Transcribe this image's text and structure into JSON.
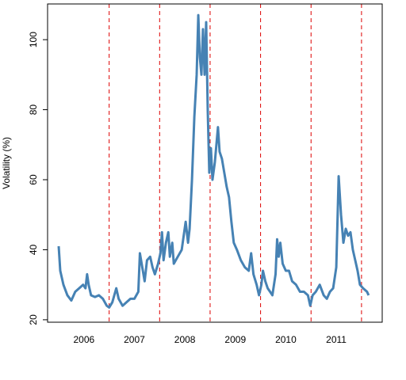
{
  "chart_data": {
    "type": "line",
    "ylabel": "Volatility (%)",
    "x": [
      2006.0,
      2006.031,
      2006.094,
      2006.172,
      2006.25,
      2006.328,
      2006.406,
      2006.484,
      2006.531,
      2006.563,
      2006.594,
      2006.641,
      2006.719,
      2006.797,
      2006.875,
      2006.953,
      2007.0,
      2007.063,
      2007.141,
      2007.188,
      2007.266,
      2007.344,
      2007.422,
      2007.5,
      2007.578,
      2007.609,
      2007.656,
      2007.703,
      2007.75,
      2007.813,
      2007.859,
      2007.906,
      2007.969,
      2008.016,
      2008.047,
      2008.078,
      2008.125,
      2008.172,
      2008.203,
      2008.25,
      2008.281,
      2008.359,
      2008.438,
      2008.516,
      2008.563,
      2008.594,
      2008.641,
      2008.688,
      2008.734,
      2008.766,
      2008.797,
      2008.828,
      2008.859,
      2008.891,
      2008.922,
      2008.953,
      2008.984,
      2009.016,
      2009.047,
      2009.094,
      2009.125,
      2009.156,
      2009.188,
      2009.234,
      2009.281,
      2009.328,
      2009.375,
      2009.422,
      2009.469,
      2009.531,
      2009.609,
      2009.688,
      2009.766,
      2009.813,
      2009.859,
      2009.922,
      2009.969,
      2010.016,
      2010.047,
      2010.094,
      2010.141,
      2010.188,
      2010.234,
      2010.297,
      2010.328,
      2010.359,
      2010.391,
      2010.438,
      2010.5,
      2010.563,
      2010.625,
      2010.703,
      2010.781,
      2010.859,
      2010.938,
      2010.984,
      2011.031,
      2011.094,
      2011.172,
      2011.25,
      2011.313,
      2011.375,
      2011.438,
      2011.5,
      2011.547,
      2011.594,
      2011.641,
      2011.688,
      2011.734,
      2011.781,
      2011.828,
      2011.875,
      2011.922,
      2011.969,
      2012.031,
      2012.109,
      2012.141
    ],
    "values": [
      41,
      34,
      30,
      27,
      25.5,
      28,
      29,
      30,
      29,
      33,
      30,
      27,
      26.5,
      27,
      26,
      24,
      23.5,
      25,
      29,
      26,
      24,
      25,
      26,
      26,
      28,
      39,
      35,
      31,
      37,
      38,
      35,
      33,
      36,
      39,
      45,
      37,
      42,
      45,
      38,
      42,
      36,
      38,
      40,
      48,
      42,
      46,
      60,
      78,
      90,
      107,
      95,
      90,
      103,
      90,
      105,
      80,
      62,
      69,
      60,
      65,
      70,
      75,
      68,
      66,
      62,
      58,
      55,
      48,
      42,
      40,
      37,
      35,
      34,
      39,
      33,
      30,
      27,
      30,
      34,
      31,
      29,
      28,
      27,
      33,
      43,
      38,
      42,
      36,
      34,
      34,
      31,
      30,
      28,
      28,
      27,
      24,
      27,
      28,
      30,
      27,
      26,
      28,
      29,
      35,
      61,
      50,
      42,
      46,
      44,
      45,
      40,
      37,
      34,
      30,
      29,
      28,
      27
    ],
    "color": "#4682b4",
    "xlim": [
      2005.78,
      2012.41
    ],
    "ylim": [
      19.3,
      110.2
    ],
    "yticks": [
      20,
      40,
      60,
      80,
      100
    ],
    "xticks": [
      {
        "value": 2006.5,
        "label": "2006"
      },
      {
        "value": 2007.5,
        "label": "2007"
      },
      {
        "value": 2008.5,
        "label": "2008"
      },
      {
        "value": 2009.5,
        "label": "2009"
      },
      {
        "value": 2010.5,
        "label": "2010"
      },
      {
        "value": 2011.5,
        "label": "2011"
      }
    ],
    "vlines": [
      2007,
      2008,
      2009,
      2010,
      2011,
      2012
    ],
    "vline_color": "#dd0000"
  }
}
